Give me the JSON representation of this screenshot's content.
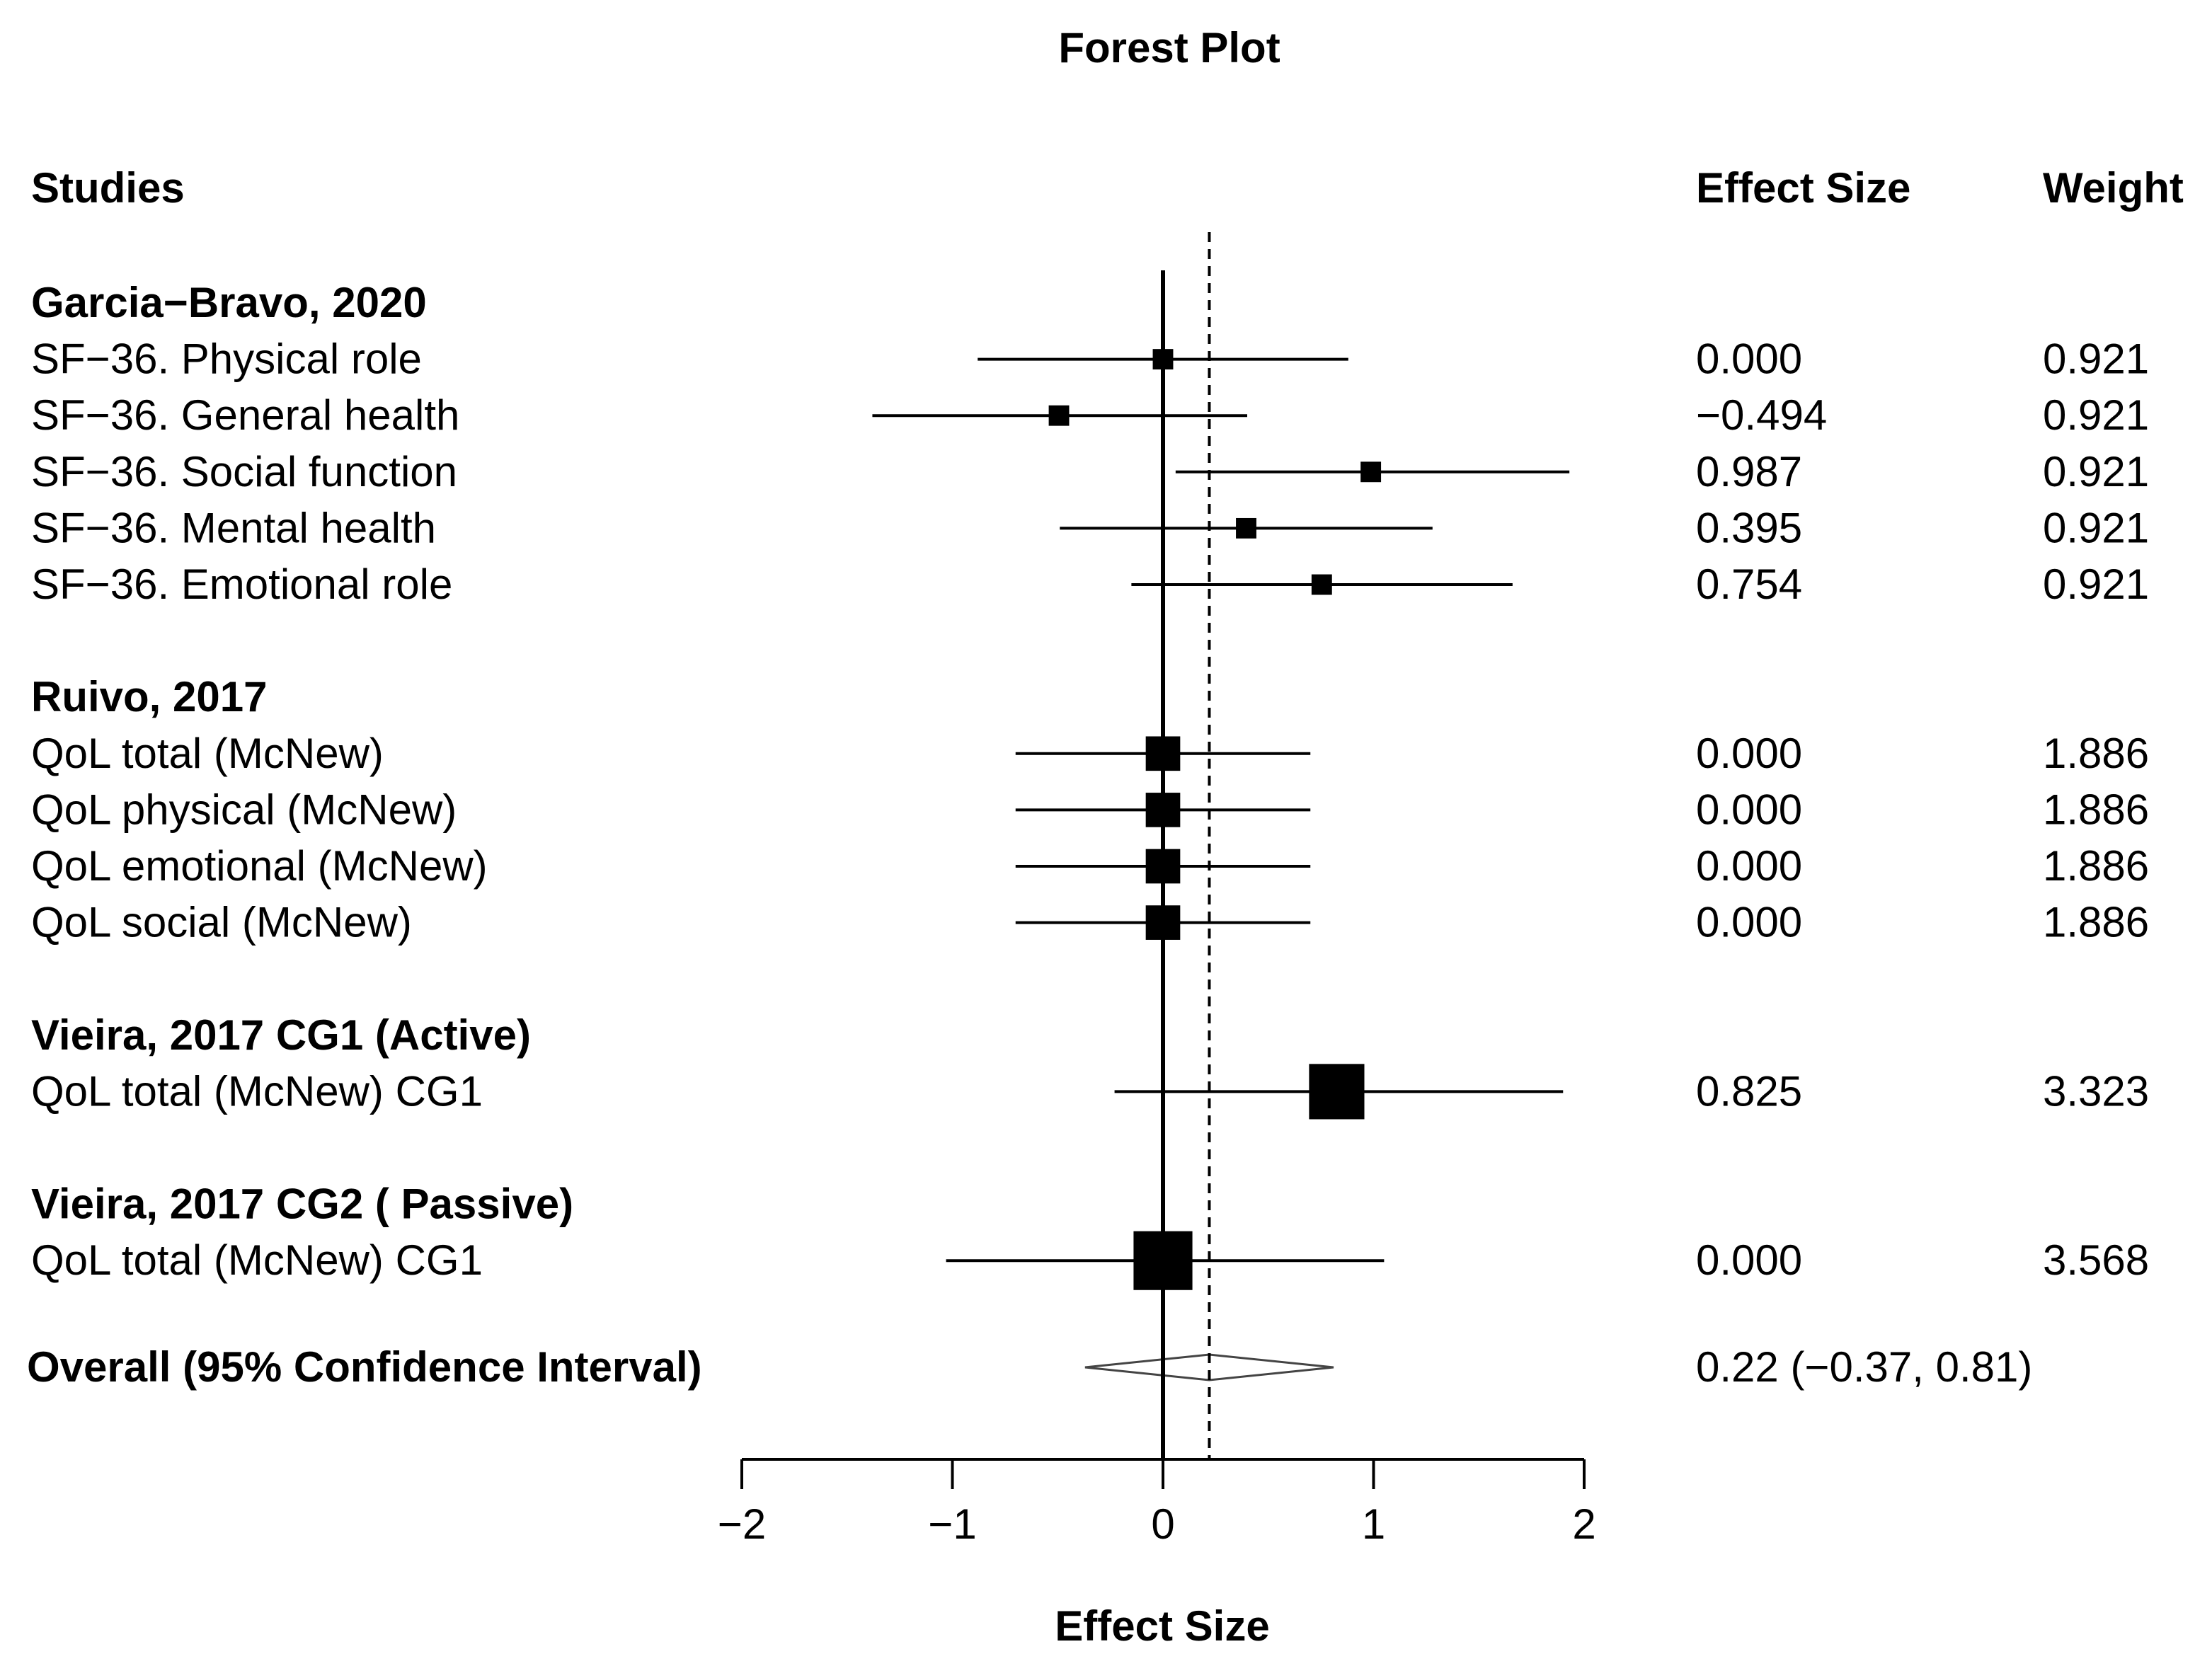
{
  "chart_data": {
    "type": "forest",
    "title": "Forest Plot",
    "xlabel": "Effect Size",
    "xlim": [
      -2,
      2
    ],
    "xticks": [
      -2,
      -1,
      0,
      1,
      2
    ],
    "xtick_labels": [
      "−2",
      "−1",
      "0",
      "1",
      "2"
    ],
    "columns": {
      "studies": "Studies",
      "effect": "Effect Size",
      "weight": "Weight"
    },
    "groups": [
      {
        "name": "Garcia−Bravo, 2020",
        "rows": [
          {
            "label": "SF−36. Physical role",
            "effect": 0.0,
            "lower": -0.88,
            "upper": 0.88,
            "effect_text": "0.000",
            "weight_text": "0.921",
            "weight": 0.921
          },
          {
            "label": "SF−36. General health",
            "effect": -0.494,
            "lower": -1.38,
            "upper": 0.4,
            "effect_text": "−0.494",
            "weight_text": "0.921",
            "weight": 0.921
          },
          {
            "label": "SF−36. Social function",
            "effect": 0.987,
            "lower": 0.06,
            "upper": 1.93,
            "effect_text": "0.987",
            "weight_text": "0.921",
            "weight": 0.921
          },
          {
            "label": "SF−36. Mental health",
            "effect": 0.395,
            "lower": -0.49,
            "upper": 1.28,
            "effect_text": "0.395",
            "weight_text": "0.921",
            "weight": 0.921
          },
          {
            "label": "SF−36. Emotional role",
            "effect": 0.754,
            "lower": -0.15,
            "upper": 1.66,
            "effect_text": "0.754",
            "weight_text": "0.921",
            "weight": 0.921
          }
        ]
      },
      {
        "name": "Ruivo, 2017",
        "rows": [
          {
            "label": "QoL total (McNew)",
            "effect": 0.0,
            "lower": -0.7,
            "upper": 0.7,
            "effect_text": "0.000",
            "weight_text": "1.886",
            "weight": 1.886
          },
          {
            "label": "QoL physical (McNew)",
            "effect": 0.0,
            "lower": -0.7,
            "upper": 0.7,
            "effect_text": "0.000",
            "weight_text": "1.886",
            "weight": 1.886
          },
          {
            "label": "QoL emotional (McNew)",
            "effect": 0.0,
            "lower": -0.7,
            "upper": 0.7,
            "effect_text": "0.000",
            "weight_text": "1.886",
            "weight": 1.886
          },
          {
            "label": "QoL social (McNew)",
            "effect": 0.0,
            "lower": -0.7,
            "upper": 0.7,
            "effect_text": "0.000",
            "weight_text": "1.886",
            "weight": 1.886
          }
        ]
      },
      {
        "name": "Vieira, 2017 CG1 (Active)",
        "rows": [
          {
            "label": "QoL total (McNew) CG1",
            "effect": 0.825,
            "lower": -0.23,
            "upper": 1.9,
            "effect_text": "0.825",
            "weight_text": "3.323",
            "weight": 3.323
          }
        ]
      },
      {
        "name": "Vieira, 2017 CG2 ( Passive)",
        "rows": [
          {
            "label": "QoL total (McNew) CG1",
            "effect": 0.0,
            "lower": -1.03,
            "upper": 1.05,
            "effect_text": "0.000",
            "weight_text": "3.568",
            "weight": 3.568
          }
        ]
      }
    ],
    "overall": {
      "label": "Overall (95% Confidence Interval)",
      "effect": 0.22,
      "lower": -0.37,
      "upper": 0.81,
      "text": "0.22 (−0.37, 0.81)"
    },
    "reference_line": 0
  }
}
